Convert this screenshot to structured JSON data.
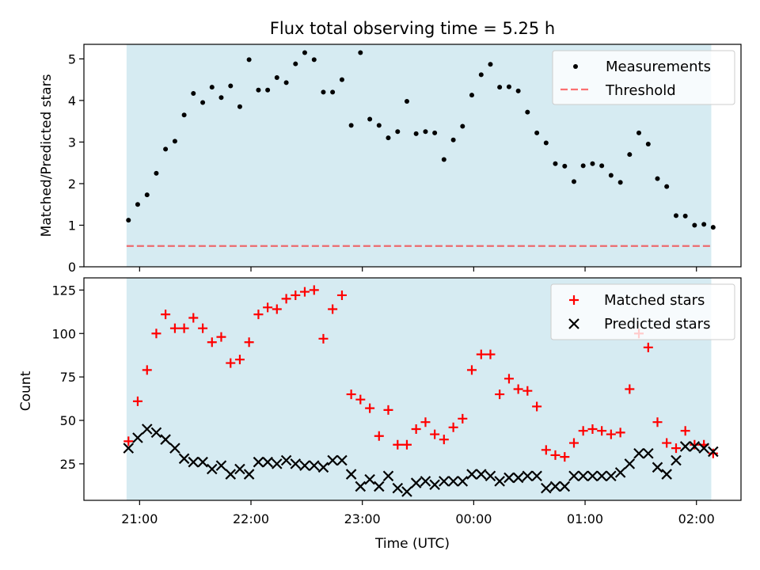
{
  "chart_data": {
    "type": "scatter",
    "title": "Flux total observing time = 5.25 h",
    "xlabel": "Time (UTC)",
    "x_ticks": [
      "21:00",
      "22:00",
      "23:00",
      "00:00",
      "01:00",
      "02:00"
    ],
    "observing_window": {
      "start_hours": 20.883,
      "end_hours": 26.133,
      "color": "#add8e6"
    },
    "panels": [
      {
        "ylabel": "Matched/Predicted stars",
        "ylim": [
          0,
          5.35
        ],
        "y_ticks": [
          0,
          1,
          2,
          3,
          4,
          5
        ],
        "legend_position": "top-right",
        "threshold": {
          "name": "Threshold",
          "value": 0.5,
          "color": "#ff0000"
        },
        "series": [
          {
            "name": "Measurements",
            "marker": "dot",
            "color": "#000000",
            "x_hours": [
              20.9,
              20.983,
              21.067,
              21.15,
              21.233,
              21.317,
              21.4,
              21.483,
              21.567,
              21.65,
              21.733,
              21.817,
              21.9,
              21.983,
              22.067,
              22.15,
              22.233,
              22.317,
              22.4,
              22.483,
              22.567,
              22.65,
              22.733,
              22.817,
              22.9,
              22.983,
              23.067,
              23.15,
              23.233,
              23.317,
              23.4,
              23.483,
              23.567,
              23.65,
              23.733,
              23.817,
              23.9,
              23.983,
              24.067,
              24.15,
              24.233,
              24.317,
              24.4,
              24.483,
              24.567,
              24.65,
              24.733,
              24.817,
              24.9,
              24.983,
              25.067,
              25.15,
              25.233,
              25.317,
              25.4,
              25.483,
              25.567,
              25.65,
              25.733,
              25.817,
              25.9,
              25.983,
              26.067,
              26.15
            ],
            "y": [
              1.12,
              1.5,
              1.73,
              2.25,
              2.83,
              3.02,
              3.65,
              4.17,
              3.95,
              4.32,
              4.07,
              4.35,
              3.85,
              4.98,
              4.25,
              4.25,
              4.55,
              4.43,
              4.88,
              5.15,
              4.98,
              4.2,
              4.2,
              4.5,
              3.4,
              5.15,
              3.55,
              3.4,
              3.1,
              3.25,
              3.98,
              3.2,
              3.25,
              3.22,
              2.58,
              3.05,
              3.38,
              4.13,
              4.62,
              4.87,
              4.32,
              4.33,
              4.23,
              3.72,
              3.22,
              2.98,
              2.48,
              2.42,
              2.05,
              2.43,
              2.48,
              2.43,
              2.2,
              2.03,
              2.7,
              3.22,
              2.95,
              2.12,
              1.93,
              1.23,
              1.22,
              1.0,
              1.02,
              0.95
            ]
          }
        ]
      },
      {
        "ylabel": "Count",
        "ylim": [
          4,
          132
        ],
        "y_ticks": [
          25,
          50,
          75,
          100,
          125
        ],
        "legend_position": "top-right",
        "series": [
          {
            "name": "Matched stars",
            "marker": "plus",
            "color": "#ff0000",
            "x_hours": [
              20.9,
              20.983,
              21.067,
              21.15,
              21.233,
              21.317,
              21.4,
              21.483,
              21.567,
              21.65,
              21.733,
              21.817,
              21.9,
              21.983,
              22.067,
              22.15,
              22.233,
              22.317,
              22.4,
              22.483,
              22.567,
              22.65,
              22.733,
              22.817,
              22.9,
              22.983,
              23.067,
              23.15,
              23.233,
              23.317,
              23.4,
              23.483,
              23.567,
              23.65,
              23.733,
              23.817,
              23.9,
              23.983,
              24.067,
              24.15,
              24.233,
              24.317,
              24.4,
              24.483,
              24.567,
              24.65,
              24.733,
              24.817,
              24.9,
              24.983,
              25.067,
              25.15,
              25.233,
              25.317,
              25.4,
              25.483,
              25.567,
              25.65,
              25.733,
              25.817,
              25.9,
              25.983,
              26.067,
              26.15
            ],
            "y": [
              38,
              61,
              79,
              100,
              111,
              103,
              103,
              109,
              103,
              95,
              98,
              83,
              85,
              95,
              111,
              115,
              114,
              120,
              122,
              124,
              125,
              97,
              114,
              122,
              65,
              62,
              57,
              41,
              56,
              36,
              36,
              45,
              49,
              42,
              39,
              46,
              51,
              79,
              88,
              88,
              65,
              74,
              68,
              67,
              58,
              33,
              30,
              29,
              37,
              44,
              45,
              44,
              42,
              43,
              68,
              100,
              92,
              49,
              37,
              34,
              44,
              36,
              36,
              31
            ]
          },
          {
            "name": "Predicted stars",
            "marker": "x",
            "color": "#000000",
            "x_hours": [
              20.9,
              20.983,
              21.067,
              21.15,
              21.233,
              21.317,
              21.4,
              21.483,
              21.567,
              21.65,
              21.733,
              21.817,
              21.9,
              21.983,
              22.067,
              22.15,
              22.233,
              22.317,
              22.4,
              22.483,
              22.567,
              22.65,
              22.733,
              22.817,
              22.9,
              22.983,
              23.067,
              23.15,
              23.233,
              23.317,
              23.4,
              23.483,
              23.567,
              23.65,
              23.733,
              23.817,
              23.9,
              23.983,
              24.067,
              24.15,
              24.233,
              24.317,
              24.4,
              24.483,
              24.567,
              24.65,
              24.733,
              24.817,
              24.9,
              24.983,
              25.067,
              25.15,
              25.233,
              25.317,
              25.4,
              25.483,
              25.567,
              25.65,
              25.733,
              25.817,
              25.9,
              25.983,
              26.067,
              26.15
            ],
            "y": [
              34,
              40,
              45,
              43,
              39,
              34,
              28,
              26,
              26,
              22,
              24,
              19,
              22,
              19,
              26,
              26,
              25,
              27,
              25,
              24,
              24,
              23,
              27,
              27,
              19,
              12,
              16,
              12,
              18,
              11,
              9,
              14,
              15,
              13,
              15,
              15,
              15,
              19,
              19,
              18,
              15,
              17,
              17,
              18,
              18,
              11,
              12,
              12,
              18,
              18,
              18,
              18,
              18,
              20,
              25,
              31,
              31,
              23,
              19,
              27,
              35,
              35,
              34,
              32
            ]
          }
        ]
      }
    ]
  }
}
